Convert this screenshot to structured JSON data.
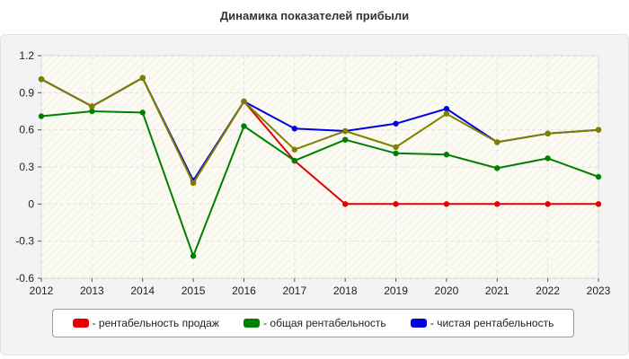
{
  "title": "Динамика показателей прибыли",
  "chart_data": {
    "type": "line",
    "categories": [
      "2012",
      "2013",
      "2014",
      "2015",
      "2016",
      "2017",
      "2018",
      "2019",
      "2020",
      "2021",
      "2022",
      "2023"
    ],
    "ylim": [
      -0.6,
      1.2
    ],
    "yticks": [
      "1.2",
      "0.9",
      "0.6",
      "0.3",
      "0",
      "-0.3",
      "-0.6"
    ],
    "ytick_values": [
      1.2,
      0.9,
      0.6,
      0.3,
      0,
      -0.3,
      -0.6
    ],
    "grid": true,
    "legend_position": "bottom",
    "series": [
      {
        "name": "- рентабельность продаж",
        "color": "#e60000",
        "values": [
          1.01,
          0.79,
          1.02,
          0.17,
          0.83,
          0.35,
          0.0,
          0.0,
          0.0,
          0.0,
          0.0,
          0.0
        ]
      },
      {
        "name": "- общая рентабельность",
        "color": "#008000",
        "values": [
          0.71,
          0.75,
          0.74,
          -0.42,
          0.63,
          0.35,
          0.52,
          0.41,
          0.4,
          0.29,
          0.37,
          0.22
        ]
      },
      {
        "name": "- чистая рентабельность",
        "color": "#0000e0",
        "values": [
          1.01,
          0.79,
          1.02,
          0.19,
          0.83,
          0.61,
          0.59,
          0.65,
          0.77,
          0.5,
          0.57,
          0.6
        ]
      },
      {
        "name": "",
        "color": "#808000",
        "overlay": true,
        "values": [
          1.01,
          0.79,
          1.02,
          0.17,
          0.83,
          0.44,
          0.59,
          0.46,
          0.73,
          0.5,
          0.57,
          0.6
        ]
      }
    ]
  }
}
